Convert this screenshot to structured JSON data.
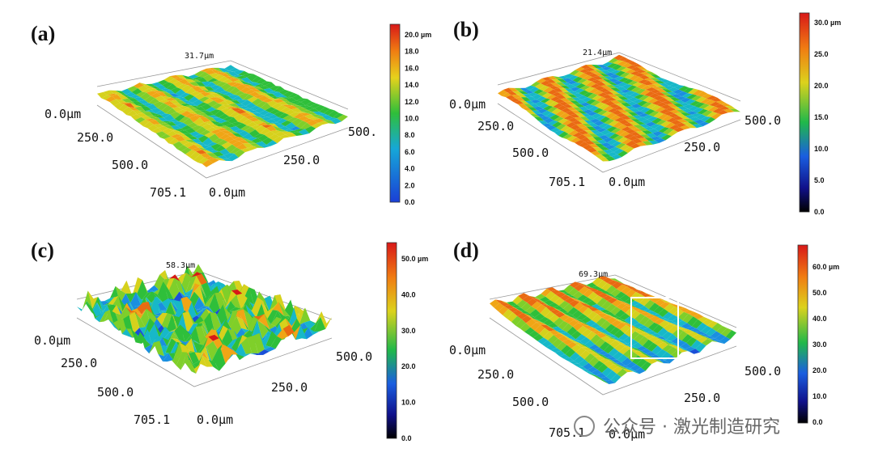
{
  "panels": [
    {
      "label": "(a)",
      "max_height": "31.7µm",
      "x_axis": [
        "0.0µm",
        "250.0",
        "500.0",
        "705.1"
      ],
      "y_axis": [
        "0.0µm",
        "250.0",
        "500."
      ],
      "colorbar": [
        "20.0 µm",
        "18.0",
        "16.0",
        "14.0",
        "12.0",
        "10.0",
        "8.0",
        "6.0",
        "4.0",
        "2.0",
        "0.0"
      ]
    },
    {
      "label": "(b)",
      "max_height": "21.4µm",
      "x_axis": [
        "0.0µm",
        "250.0",
        "500.0",
        "705.1"
      ],
      "y_axis": [
        "0.0µm",
        "250.0",
        "500.0"
      ],
      "colorbar": [
        "30.0 µm",
        "25.0",
        "20.0",
        "15.0",
        "10.0",
        "5.0",
        "0.0"
      ]
    },
    {
      "label": "(c)",
      "max_height": "58.3µm",
      "x_axis": [
        "0.0µm",
        "250.0",
        "500.0",
        "705.1"
      ],
      "y_axis": [
        "0.0µm",
        "250.0",
        "500.0"
      ],
      "colorbar": [
        "50.0 µm",
        "40.0",
        "30.0",
        "20.0",
        "10.0",
        "0.0"
      ]
    },
    {
      "label": "(d)",
      "max_height": "69.3µm",
      "x_axis": [
        "0.0µm",
        "250.0",
        "500.0",
        "705.1"
      ],
      "y_axis": [
        "0.0µm",
        "250.0",
        "500.0"
      ],
      "colorbar": [
        "60.0 µm",
        "50.0",
        "40.0",
        "30.0",
        "20.0",
        "10.0",
        "0.0"
      ]
    }
  ],
  "watermark": "公众号 · 激光制造研究"
}
